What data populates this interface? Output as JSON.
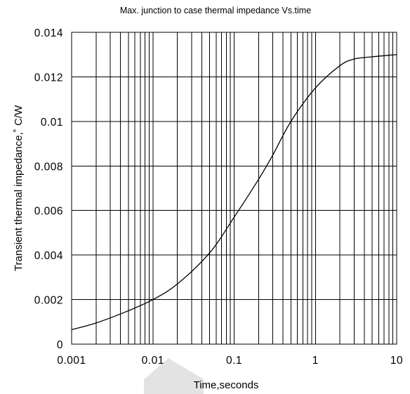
{
  "chart_data": {
    "type": "line",
    "title": "Max. junction to case thermal impedance Vs.time",
    "xlabel": "Time,seconds",
    "ylabel": "Transient  thermal impedance,˚  C/W",
    "x_scale": "log",
    "xlim": [
      0.001,
      10
    ],
    "ylim": [
      0,
      0.014
    ],
    "grid": true,
    "x_ticks": [
      "0.001",
      "0.01",
      "0.1",
      "1",
      "10"
    ],
    "y_ticks": [
      "0",
      "0.002",
      "0.004",
      "0.006",
      "0.008",
      "0.01",
      "0.012",
      "0.014"
    ],
    "series": [
      {
        "x": [
          0.001,
          0.002,
          0.005,
          0.01,
          0.02,
          0.05,
          0.1,
          0.2,
          0.3,
          0.5,
          1,
          2,
          3,
          5,
          10
        ],
        "y": [
          0.00065,
          0.00095,
          0.0015,
          0.002,
          0.0027,
          0.0041,
          0.0057,
          0.0074,
          0.0085,
          0.01,
          0.0115,
          0.0125,
          0.0128,
          0.0129,
          0.013
        ]
      }
    ]
  }
}
